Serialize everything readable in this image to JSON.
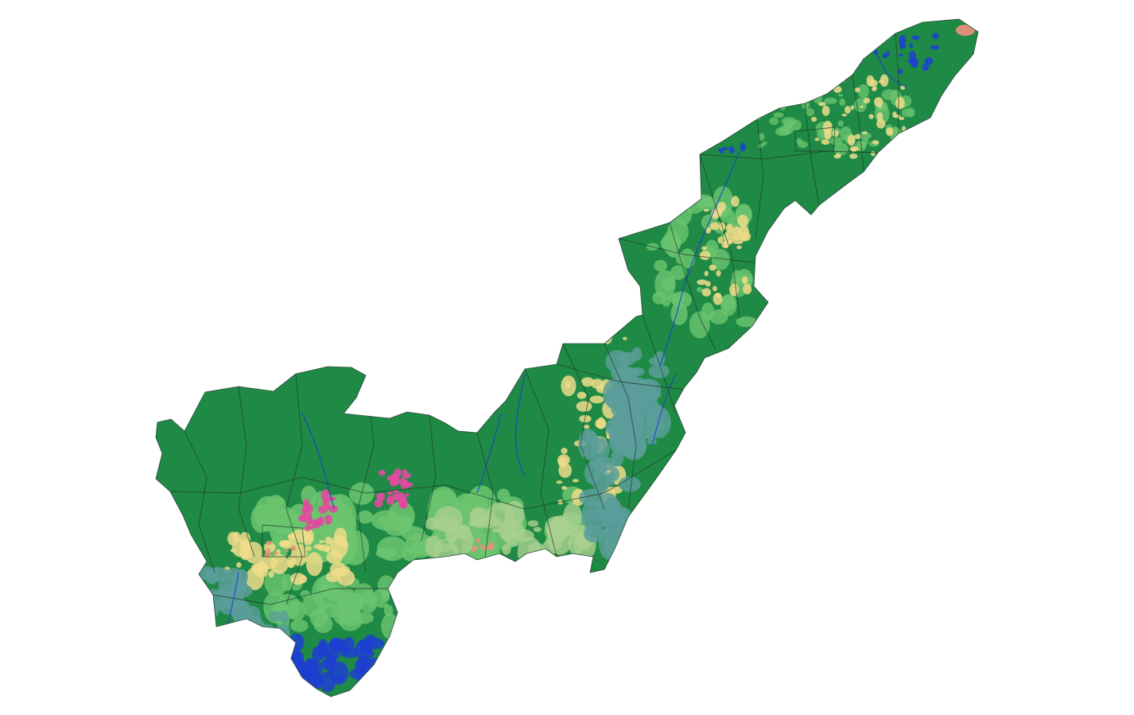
{
  "map": {
    "type": "land-cover-choropleth",
    "background": "#ffffff",
    "labels_visible": false,
    "legend_visible": false,
    "boundary_color": "#1f3a2a",
    "river_color": "#1d3fd0",
    "classes": [
      {
        "name": "dense-forest",
        "color": "#1f8a45"
      },
      {
        "name": "open-vegetation",
        "color": "#6cc46f"
      },
      {
        "name": "grassland",
        "color": "#a9d08e"
      },
      {
        "name": "agriculture",
        "color": "#eedc8a"
      },
      {
        "name": "wetland",
        "color": "#5a9e9a"
      },
      {
        "name": "water",
        "color": "#1d3fd0"
      },
      {
        "name": "mining",
        "color": "#e24aa0"
      },
      {
        "name": "urban",
        "color": "#e8907a"
      }
    ]
  }
}
